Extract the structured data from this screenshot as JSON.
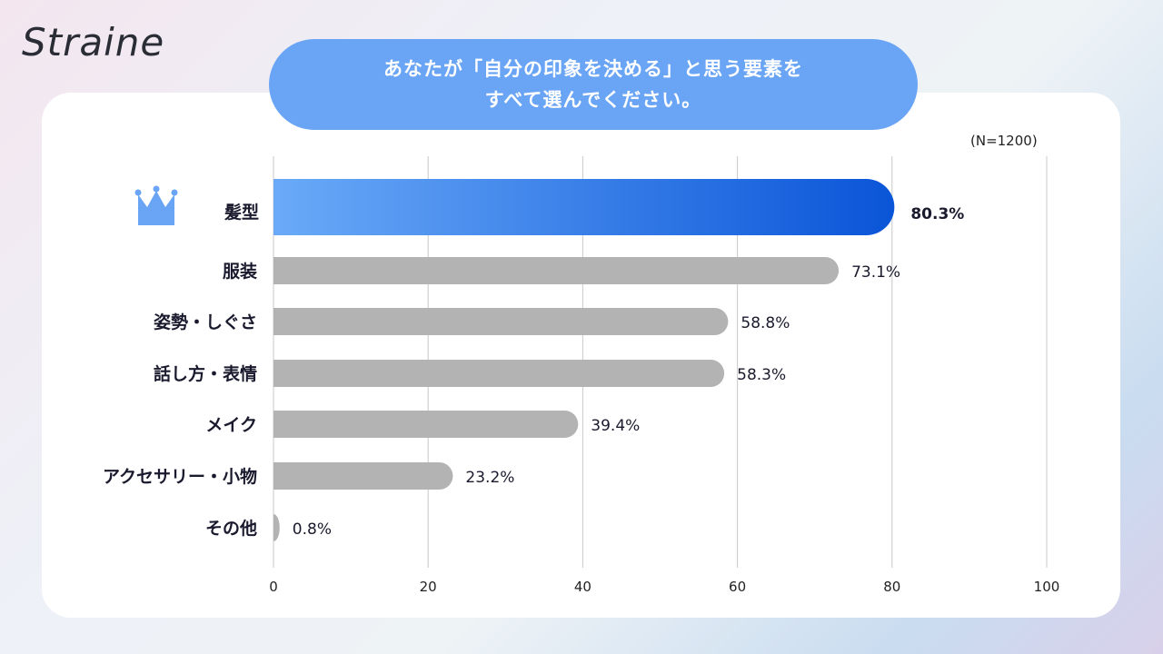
{
  "logo": "Straine",
  "question": {
    "line1": "あなたが「自分の印象を決める」と思う要素を",
    "line2": "すべて選んでください。"
  },
  "sample_size": "(N=1200)",
  "colors": {
    "highlight_start": "#6aaaf8",
    "highlight_end": "#0a55d8",
    "highlight_text": "#1060d0",
    "bar": "#b3b3b3",
    "title_pill": "#6aa5f5"
  },
  "chart_data": {
    "type": "bar",
    "orientation": "horizontal",
    "categories": [
      "髪型",
      "服装",
      "姿勢・しぐさ",
      "話し方・表情",
      "メイク",
      "アクセサリー・小物",
      "その他"
    ],
    "values": [
      80.3,
      73.1,
      58.8,
      58.3,
      39.4,
      23.2,
      0.8
    ],
    "value_labels": [
      "80.3%",
      "73.1%",
      "58.8%",
      "58.3%",
      "39.4%",
      "23.2%",
      "0.8%"
    ],
    "xlim": [
      0,
      100
    ],
    "xticks": [
      "0",
      "20",
      "40",
      "60",
      "80",
      "100"
    ],
    "grid": true,
    "highlighted_index": 0,
    "highlight_icon": "crown-icon"
  }
}
